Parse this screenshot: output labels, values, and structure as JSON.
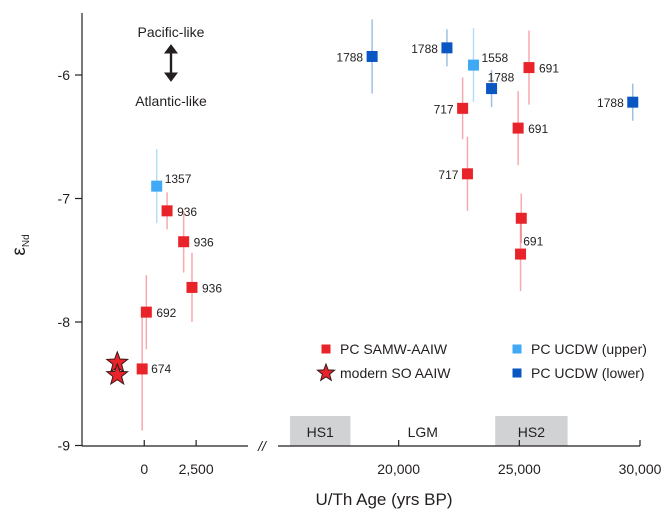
{
  "chart_data": {
    "type": "scatter",
    "title": "",
    "xlabel": "U/Th Age (yrs BP)",
    "ylabel": "ε",
    "ylabel_sub": "Nd",
    "ylim": [
      -9,
      -5.5
    ],
    "yticks": [
      -9,
      -8,
      -7,
      -6
    ],
    "ytick_labels": [
      "-9",
      "-8",
      "-7",
      "-6"
    ],
    "x_break": true,
    "x_break_symbol": "//",
    "left_panel": {
      "xlim": [
        -3000,
        5000
      ],
      "xticks": [
        0,
        2500
      ],
      "xtick_labels": [
        "0",
        "2,500"
      ]
    },
    "right_panel": {
      "xlim": [
        15000,
        30000
      ],
      "xticks": [
        20000,
        25000,
        30000
      ],
      "xtick_labels": [
        "20,000",
        "25,000",
        "30,000"
      ]
    },
    "annotation_arrow": {
      "top": "Pacific-like",
      "bottom": "Atlantic-like"
    },
    "period_bands": [
      {
        "label": "HS1",
        "x0": 15500,
        "x1": 18000,
        "shaded": true
      },
      {
        "label": "LGM",
        "x0": 19000,
        "x1": 23000,
        "shaded": false
      },
      {
        "label": "HS2",
        "x0": 24000,
        "x1": 27000,
        "shaded": true
      }
    ],
    "legend": {
      "position": "bottom-right",
      "entries": [
        {
          "label": "PC SAMW-AAIW",
          "color": "#e8232a",
          "marker": "square"
        },
        {
          "label": "modern SO AAIW",
          "color": "#e8232a",
          "marker": "star"
        },
        {
          "label": "PC UCDW (upper)",
          "color": "#3fa9f5",
          "marker": "square"
        },
        {
          "label": "PC UCDW (lower)",
          "color": "#0a56c2",
          "marker": "square"
        }
      ]
    },
    "series": [
      {
        "name": "PC SAMW-AAIW",
        "color": "#e8232a",
        "marker": "square",
        "points": [
          {
            "x": 1100,
            "y": -7.1,
            "err": 0.15,
            "label": "936"
          },
          {
            "x": 1900,
            "y": -7.35,
            "err": 0.25,
            "label": "936"
          },
          {
            "x": 2300,
            "y": -7.72,
            "err": 0.28,
            "label": "936"
          },
          {
            "x": 100,
            "y": -7.92,
            "err": 0.3,
            "label": "692"
          },
          {
            "x": -100,
            "y": -8.38,
            "err": 0.5,
            "label": "674"
          },
          {
            "x": 22650,
            "y": -6.27,
            "err": 0.25,
            "label": "717"
          },
          {
            "x": 22850,
            "y": -6.8,
            "err": 0.3,
            "label": "717"
          },
          {
            "x": 25400,
            "y": -5.94,
            "err": 0.3,
            "label": "691"
          },
          {
            "x": 24950,
            "y": -6.43,
            "err": 0.3,
            "label": "691"
          },
          {
            "x": 25080,
            "y": -7.16,
            "err": 0.2,
            "label": "691"
          },
          {
            "x": 25050,
            "y": -7.45,
            "err": 0.3,
            "label": ""
          }
        ]
      },
      {
        "name": "modern SO AAIW",
        "color": "#e8232a",
        "marker": "star",
        "points": [
          {
            "x": -1300,
            "y": -8.33
          },
          {
            "x": -1300,
            "y": -8.43
          }
        ]
      },
      {
        "name": "PC UCDW (upper)",
        "color": "#3fa9f5",
        "marker": "square",
        "points": [
          {
            "x": 600,
            "y": -6.9,
            "err": 0.3,
            "label": "1357"
          },
          {
            "x": 23100,
            "y": -5.92,
            "err": 0.3,
            "label": "1558"
          }
        ]
      },
      {
        "name": "PC UCDW (lower)",
        "color": "#0a56c2",
        "marker": "square",
        "points": [
          {
            "x": 18900,
            "y": -5.85,
            "err": 0.3,
            "label": "1788"
          },
          {
            "x": 22000,
            "y": -5.78,
            "err": 0.15,
            "label": "1788"
          },
          {
            "x": 23850,
            "y": -6.11,
            "err": 0.15,
            "label": "1788"
          },
          {
            "x": 29700,
            "y": -6.22,
            "err": 0.15,
            "label": "1788"
          }
        ]
      }
    ]
  }
}
